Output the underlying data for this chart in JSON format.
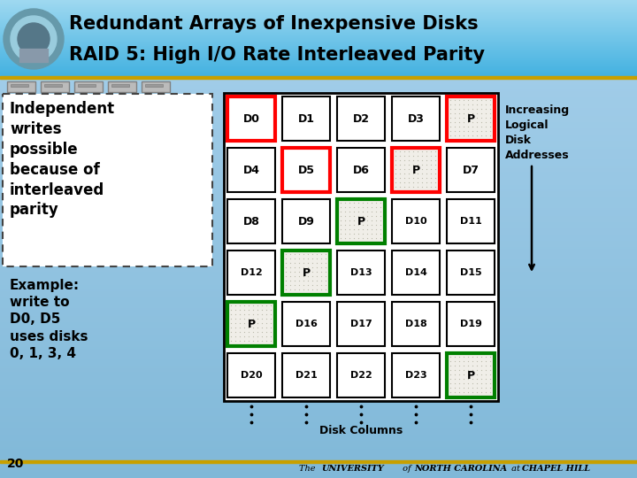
{
  "title_line1": "Redundant Arrays of Inexpensive Disks",
  "title_line2": "RAID 5: High I/O Rate Interleaved Parity",
  "cells": [
    {
      "row": 0,
      "col": 0,
      "label": "D0",
      "border": "red",
      "fill": "white"
    },
    {
      "row": 0,
      "col": 1,
      "label": "D1",
      "border": "black",
      "fill": "white"
    },
    {
      "row": 0,
      "col": 2,
      "label": "D2",
      "border": "black",
      "fill": "white"
    },
    {
      "row": 0,
      "col": 3,
      "label": "D3",
      "border": "black",
      "fill": "white"
    },
    {
      "row": 0,
      "col": 4,
      "label": "P",
      "border": "red",
      "fill": "dotted"
    },
    {
      "row": 1,
      "col": 0,
      "label": "D4",
      "border": "black",
      "fill": "white"
    },
    {
      "row": 1,
      "col": 1,
      "label": "D5",
      "border": "red",
      "fill": "white"
    },
    {
      "row": 1,
      "col": 2,
      "label": "D6",
      "border": "black",
      "fill": "white"
    },
    {
      "row": 1,
      "col": 3,
      "label": "P",
      "border": "red",
      "fill": "dotted"
    },
    {
      "row": 1,
      "col": 4,
      "label": "D7",
      "border": "black",
      "fill": "white"
    },
    {
      "row": 2,
      "col": 0,
      "label": "D8",
      "border": "black",
      "fill": "white"
    },
    {
      "row": 2,
      "col": 1,
      "label": "D9",
      "border": "black",
      "fill": "white"
    },
    {
      "row": 2,
      "col": 2,
      "label": "P",
      "border": "green",
      "fill": "dotted"
    },
    {
      "row": 2,
      "col": 3,
      "label": "D10",
      "border": "black",
      "fill": "white"
    },
    {
      "row": 2,
      "col": 4,
      "label": "D11",
      "border": "black",
      "fill": "white"
    },
    {
      "row": 3,
      "col": 0,
      "label": "D12",
      "border": "black",
      "fill": "white"
    },
    {
      "row": 3,
      "col": 1,
      "label": "P",
      "border": "green",
      "fill": "dotted"
    },
    {
      "row": 3,
      "col": 2,
      "label": "D13",
      "border": "black",
      "fill": "white"
    },
    {
      "row": 3,
      "col": 3,
      "label": "D14",
      "border": "black",
      "fill": "white"
    },
    {
      "row": 3,
      "col": 4,
      "label": "D15",
      "border": "black",
      "fill": "white"
    },
    {
      "row": 4,
      "col": 0,
      "label": "P",
      "border": "green",
      "fill": "dotted"
    },
    {
      "row": 4,
      "col": 1,
      "label": "D16",
      "border": "black",
      "fill": "white"
    },
    {
      "row": 4,
      "col": 2,
      "label": "D17",
      "border": "black",
      "fill": "white"
    },
    {
      "row": 4,
      "col": 3,
      "label": "D18",
      "border": "black",
      "fill": "white"
    },
    {
      "row": 4,
      "col": 4,
      "label": "D19",
      "border": "black",
      "fill": "white"
    },
    {
      "row": 5,
      "col": 0,
      "label": "D20",
      "border": "black",
      "fill": "white"
    },
    {
      "row": 5,
      "col": 1,
      "label": "D21",
      "border": "black",
      "fill": "white"
    },
    {
      "row": 5,
      "col": 2,
      "label": "D22",
      "border": "black",
      "fill": "white"
    },
    {
      "row": 5,
      "col": 3,
      "label": "D23",
      "border": "black",
      "fill": "white"
    },
    {
      "row": 5,
      "col": 4,
      "label": "P",
      "border": "green",
      "fill": "dotted"
    }
  ],
  "left_text_main": "Independent\nwrites\npossible\nbecause of\ninterleaved\nparity",
  "left_text_example": "Example:\nwrite to\nD0, D5\nuses disks\n0, 1, 3, 4",
  "right_text": "Increasing\nLogical\nDisk\nAddresses",
  "disk_columns_label": "Disk Columns",
  "footer_text": "The UNIVERSITY of NORTH CAROLINA at CHAPEL HILL",
  "page_number": "20",
  "gold_color": "#C8A000",
  "header_color_top": "#9ED8F0",
  "header_color_bot": "#60C0E8",
  "body_color": "#A8D0E8"
}
